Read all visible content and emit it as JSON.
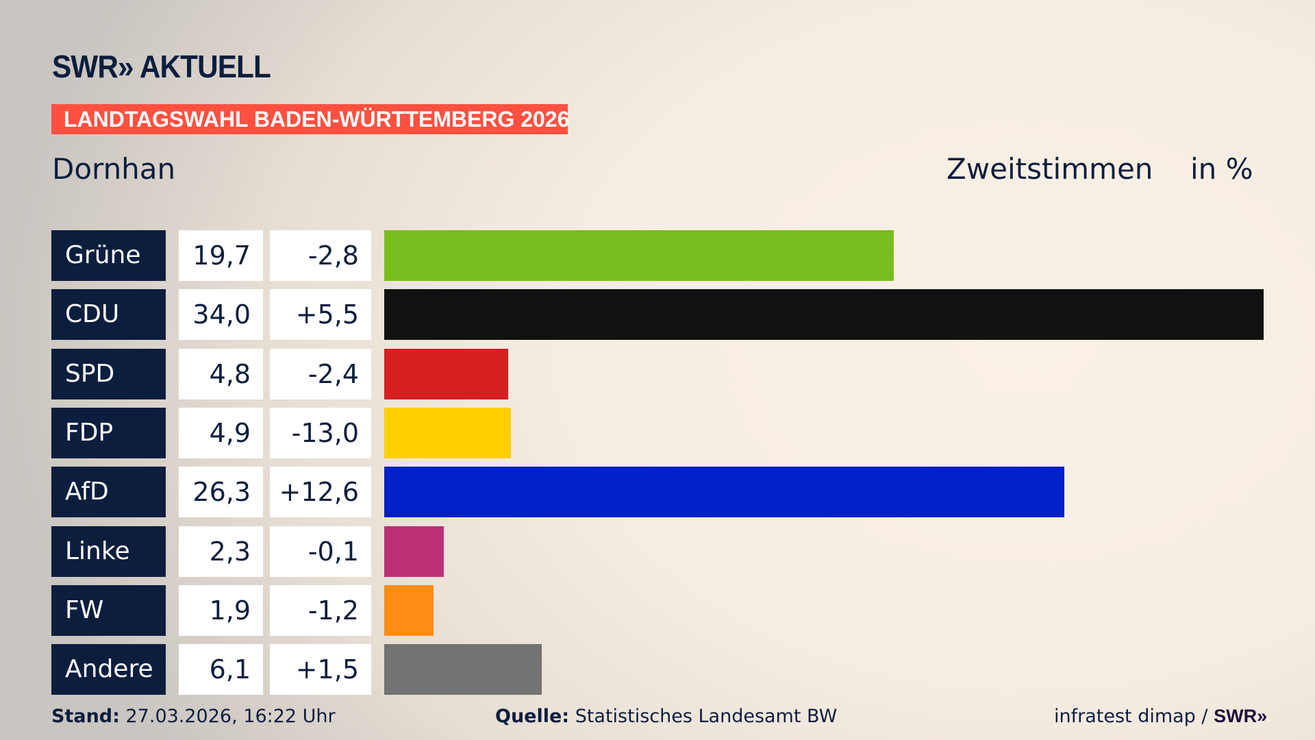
{
  "header": {
    "logo": "SWR» AKTUELL",
    "band": "LANDTAGSWAHL BADEN-WÜRTTEMBERG 2026",
    "location": "Dornhan",
    "metric": "Zweitstimmen",
    "unit": "in %"
  },
  "chart_data": {
    "type": "bar",
    "orientation": "horizontal",
    "categories": [
      "Grüne",
      "CDU",
      "SPD",
      "FDP",
      "AfD",
      "Linke",
      "FW",
      "Andere"
    ],
    "values": [
      19.7,
      34.0,
      4.8,
      4.9,
      26.3,
      2.3,
      1.9,
      6.1
    ],
    "value_labels": [
      "19,7",
      "34,0",
      "4,8",
      "4,9",
      "26,3",
      "2,3",
      "1,9",
      "6,1"
    ],
    "changes": [
      -2.8,
      5.5,
      -2.4,
      -13.0,
      12.6,
      -0.1,
      -1.2,
      1.5
    ],
    "change_labels": [
      "-2,8",
      "+5,5",
      "-2,4",
      "-13,0",
      "+12,6",
      "-0,1",
      "-1,2",
      "+1,5"
    ],
    "colors": [
      "#78be1e",
      "#111111",
      "#d61f1f",
      "#ffd000",
      "#0020c8",
      "#be3075",
      "#ff8c14",
      "#737373"
    ],
    "grid": false
  },
  "footer": {
    "stand_label": "Stand:",
    "stand_value": " 27.03.2026, 16:22 Uhr",
    "source_label": "Quelle:",
    "source_value": " Statistisches Landesamt BW",
    "credit": "infratest dimap / ",
    "credit_logo": "SWR»"
  }
}
